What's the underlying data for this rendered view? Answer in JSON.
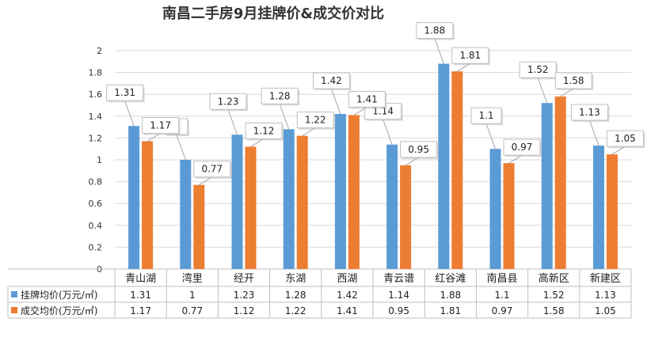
{
  "chart_data": {
    "type": "bar",
    "title": "南昌二手房9月挂牌价&成交价对比",
    "categories": [
      "青山湖",
      "湾里",
      "经开",
      "东湖",
      "西湖",
      "青云谱",
      "红谷滩",
      "南昌县",
      "高新区",
      "新建区"
    ],
    "series": [
      {
        "name": "挂牌均价(万元/㎡)",
        "color": "#5B9BD5",
        "values": [
          1.31,
          1,
          1.23,
          1.28,
          1.42,
          1.14,
          1.88,
          1.1,
          1.52,
          1.13
        ]
      },
      {
        "name": "成交均价(万元/㎡)",
        "color": "#ED7D31",
        "values": [
          1.17,
          0.77,
          1.12,
          1.22,
          1.41,
          0.95,
          1.81,
          0.97,
          1.58,
          1.05
        ]
      }
    ],
    "yticks": [
      "0",
      "0.2",
      "0.4",
      "0.6",
      "0.8",
      "1",
      "1.2",
      "1.4",
      "1.6",
      "1.8",
      "2"
    ],
    "ylim": [
      0,
      2
    ],
    "grid": true,
    "data_table": true
  }
}
